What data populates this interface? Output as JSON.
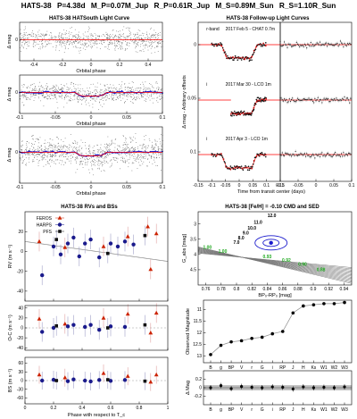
{
  "header": {
    "planet": "HATS-38",
    "P": "P=4.38d",
    "Mp": "M_P=0.07M_Jup",
    "Rp": "R_P=0.61R_Jup",
    "Ms": "M_S=0.89M_Sun",
    "Rs": "R_S=1.10R_Sun"
  },
  "chart_data": [
    {
      "id": "hatsouth_lc",
      "type": "scatter",
      "title": "HATS-38 HATSouth Light Curve",
      "ylabel": "Δ mag",
      "panels": [
        {
          "xlabel": "Orbital phase",
          "xlim": [
            -0.5,
            0.5
          ],
          "xticks": [
            -0.4,
            -0.2,
            0,
            0.2,
            0.4
          ],
          "model": "flat",
          "model_color": "#ff0000"
        },
        {
          "xlabel": "Orbital phase",
          "xlim": [
            -0.1,
            0.1
          ],
          "xticks": [
            -0.1,
            -0.05,
            0,
            0.05,
            0.1
          ],
          "model": "transit",
          "model_color": "#ff0000",
          "binned_color": "#1f1fcc"
        },
        {
          "xlabel": "Orbital phase",
          "xlim": [
            -0.1,
            0.1
          ],
          "xticks": [
            -0.1,
            -0.05,
            0,
            0.05,
            0.1
          ],
          "model": "transit",
          "model_color": "#ff0000",
          "binned_color": "#1f1fcc"
        }
      ],
      "yticks": [
        0
      ]
    },
    {
      "id": "followup_lc",
      "type": "scatter",
      "title": "HATS-38 Follow-up Light Curves",
      "xlabel": "Time from transit center (days)",
      "ylabel": "Δ mag - Arbitrary offsets",
      "xlim": [
        -0.15,
        0.15
      ],
      "xticks": [
        -0.15,
        -0.1,
        -0.05,
        0,
        0.05,
        0.1,
        0.15
      ],
      "resid_xlim": [
        -0.1,
        0.1
      ],
      "resid_xticks": [
        -0.1,
        -0.05,
        0,
        0.05,
        0.1
      ],
      "yticks": [
        0,
        0.05,
        0.1
      ],
      "observations": [
        {
          "band": "r-band",
          "label": "2017 Feb 5 - CHAT 0.7m",
          "depth": 0.012
        },
        {
          "band": "i",
          "label": "2017 Mar 30 - LCO 1m",
          "depth": 0.012
        },
        {
          "band": "i",
          "label": "2017 Apr 3 - LCO 1m",
          "depth": 0.012
        }
      ]
    },
    {
      "id": "rv_bs",
      "type": "scatter",
      "title": "HATS-38 RVs and BSs",
      "xlabel": "Phase with respect to T_c",
      "xlim": [
        0,
        1
      ],
      "xticks": [
        0,
        0.2,
        0.4,
        0.6,
        0.8,
        1
      ],
      "legend": [
        {
          "name": "FEROS",
          "color": "#cc2200",
          "marker": "triangle"
        },
        {
          "name": "HARPS",
          "color": "#1a1a8c",
          "marker": "circle"
        },
        {
          "name": "PFS",
          "color": "#111111",
          "marker": "square"
        }
      ],
      "rv": {
        "ylabel": "RV (m s⁻¹)",
        "ylim": [
          -50,
          40
        ],
        "yticks": [
          -40,
          -20,
          0,
          20
        ],
        "model_amplitude": 10,
        "feros": [
          [
            0.1,
            10
          ],
          [
            0.28,
            4
          ],
          [
            0.55,
            5
          ],
          [
            0.72,
            15
          ],
          [
            0.86,
            25
          ],
          [
            0.88,
            -18
          ],
          [
            0.92,
            18
          ]
        ],
        "harps": [
          [
            0.12,
            -24
          ],
          [
            0.2,
            5
          ],
          [
            0.25,
            -3
          ],
          [
            0.3,
            8
          ],
          [
            0.34,
            14
          ],
          [
            0.38,
            -5
          ],
          [
            0.42,
            8
          ],
          [
            0.46,
            12
          ],
          [
            0.52,
            -6
          ],
          [
            0.6,
            8
          ],
          [
            0.65,
            5
          ],
          [
            0.7,
            10
          ],
          [
            0.76,
            7
          ]
        ],
        "pfs": [
          [
            0.22,
            12
          ],
          [
            0.58,
            -2
          ],
          [
            0.84,
            16
          ]
        ]
      },
      "oc": {
        "ylabel": "O-C (m s⁻¹)",
        "ylim": [
          -45,
          45
        ],
        "yticks": [
          -40,
          -20,
          0,
          20,
          40
        ],
        "feros": [
          [
            0.1,
            18
          ],
          [
            0.28,
            8
          ],
          [
            0.55,
            20
          ],
          [
            0.72,
            28
          ],
          [
            0.88,
            -10
          ],
          [
            0.92,
            30
          ]
        ],
        "harps": [
          [
            0.12,
            -8
          ],
          [
            0.2,
            0
          ],
          [
            0.3,
            3
          ],
          [
            0.34,
            6
          ],
          [
            0.42,
            2
          ],
          [
            0.46,
            6
          ],
          [
            0.52,
            -4
          ],
          [
            0.6,
            3
          ],
          [
            0.7,
            2
          ]
        ],
        "pfs": [
          [
            0.22,
            4
          ],
          [
            0.58,
            0
          ],
          [
            0.84,
            6
          ]
        ]
      },
      "bs": {
        "ylabel": "BS (m s⁻¹)",
        "ylim": [
          -80,
          80
        ],
        "yticks": [
          -60,
          -30,
          0,
          30,
          60
        ],
        "feros": [
          [
            0.1,
            20
          ],
          [
            0.28,
            10
          ],
          [
            0.55,
            25
          ],
          [
            0.72,
            15
          ],
          [
            0.88,
            -5
          ],
          [
            0.92,
            20
          ]
        ],
        "harps": [
          [
            0.12,
            0
          ],
          [
            0.2,
            3
          ],
          [
            0.3,
            -2
          ],
          [
            0.34,
            4
          ],
          [
            0.42,
            0
          ],
          [
            0.46,
            -3
          ],
          [
            0.52,
            2
          ],
          [
            0.6,
            -1
          ],
          [
            0.7,
            2
          ]
        ],
        "pfs": [
          [
            0.22,
            0
          ],
          [
            0.58,
            3
          ],
          [
            0.84,
            -2
          ]
        ]
      }
    },
    {
      "id": "cmd",
      "type": "line",
      "title": "HATS-38 [Fe/H] = -0.10 CMD and SED",
      "xlabel": "BP₀-RP₀ [mag]",
      "ylabel": "G_abs [mag]",
      "xlim": [
        0.75,
        0.95
      ],
      "ylim": [
        5.0,
        2.6
      ],
      "xticks": [
        0.76,
        0.78,
        0.8,
        0.82,
        0.84,
        0.86,
        0.88,
        0.9,
        0.92,
        0.94
      ],
      "yticks": [
        3.0,
        3.5,
        4.0,
        4.5
      ],
      "star": {
        "x": 0.845,
        "y": 3.62
      },
      "age_labels_black": [
        {
          "text": "12.0",
          "x": 0.846,
          "y": 2.78
        },
        {
          "text": "11.0",
          "x": 0.828,
          "y": 3.0
        },
        {
          "text": "10.0",
          "x": 0.82,
          "y": 3.18
        },
        {
          "text": "9.0",
          "x": 0.812,
          "y": 3.35
        },
        {
          "text": "8.0",
          "x": 0.806,
          "y": 3.5
        },
        {
          "text": "7.0",
          "x": 0.8,
          "y": 3.66
        }
      ],
      "age_labels_green": [
        {
          "text": "1.00",
          "x": 0.762,
          "y": 3.82
        },
        {
          "text": "1.00",
          "x": 0.782,
          "y": 3.95
        },
        {
          "text": "0.93",
          "x": 0.84,
          "y": 4.12
        },
        {
          "text": "0.92",
          "x": 0.865,
          "y": 4.24
        },
        {
          "text": "0.90",
          "x": 0.886,
          "y": 4.37
        },
        {
          "text": "0.88",
          "x": 0.91,
          "y": 4.55
        }
      ]
    },
    {
      "id": "sed",
      "type": "line",
      "ylabel": "Observed Magnitude",
      "resid_ylabel": "Δ Mag",
      "categories": [
        "B",
        "g",
        "BP",
        "V",
        "r",
        "G",
        "i",
        "RP",
        "J",
        "H",
        "Ks",
        "W1",
        "W2",
        "W3"
      ],
      "values": [
        12.95,
        12.55,
        12.4,
        12.35,
        12.25,
        12.2,
        12.05,
        11.95,
        11.15,
        10.85,
        10.8,
        10.75,
        10.75,
        10.7
      ],
      "ylim": [
        13.3,
        10.6
      ],
      "yticks": [
        11.0,
        11.5,
        12.0,
        12.5,
        13.0
      ],
      "residuals": [
        0.0,
        0.05,
        -0.02,
        0.03,
        0.01,
        0.0,
        0.02,
        0.01,
        -0.03,
        0.02,
        0.0,
        0.01,
        0.0,
        0.02
      ],
      "resid_ylim": [
        -0.4,
        0.4
      ],
      "resid_yticks": [
        -0.2,
        0.0,
        0.2
      ]
    }
  ]
}
